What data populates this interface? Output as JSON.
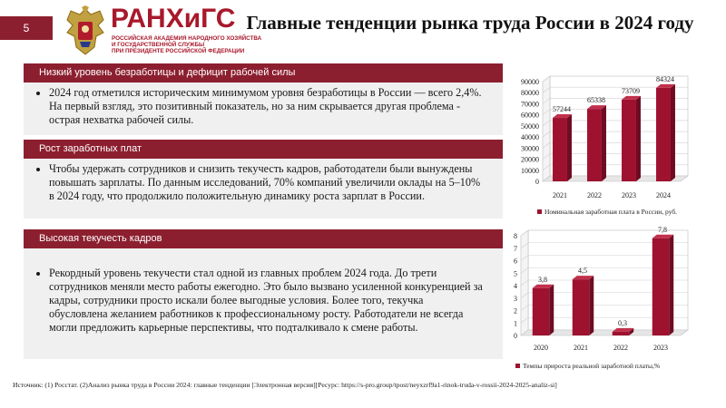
{
  "slide_number": "5",
  "logo": {
    "title": "РАНХиГС",
    "subtitle_lines": [
      "РОССИЙСКАЯ АКАДЕМИЯ НАРОДНОГО ХОЗЯЙСТВА",
      "И ГОСУДАРСТВЕННОЙ СЛУЖБЫ",
      "ПРИ ПРЕЗИДЕНТЕ РОССИЙСКОЙ ФЕДЕРАЦИИ"
    ]
  },
  "title": "Главные тенденции рынка труда России в 2024 году",
  "sections": [
    {
      "header": "Низкий уровень безработицы и дефицит рабочей силы",
      "text": "2024 год отметился историческим минимумом уровня безработицы в России — всего 2,4%. На первый взгляд, это позитивный показатель, но за ним скрывается другая проблема - острая нехватка рабочей силы."
    },
    {
      "header": "Рост заработных плат",
      "text": "Чтобы удержать сотрудников и снизить текучесть кадров, работодатели были вынуждены повышать зарплаты. По данным исследований, 70% компаний увеличили оклады на 5–10% в 2024 году, что продолжило положительную динамику роста зарплат в России."
    },
    {
      "header": "Высокая текучесть кадров",
      "text": "Рекордный уровень текучести стал одной из главных проблем 2024 года. До трети сотрудников меняли место работы ежегодно. Это было вызвано усиленной конкуренцией за кадры, сотрудники просто искали более выгодные условия. Более того, текучка обусловлена желанием работников к профессиональному росту. Работодатели не всегда могли предложить карьерные перспективы, что подталкивало к смене работы."
    }
  ],
  "source": "Источник: (1) Росстат. (2)Анализ рынка труда в России 2024: главные тенденции [Электронная версия][Ресурс: https://s-pro.group/tpost/neyxzrf9a1-rinok-truda-v-rossii-2024-2025-analiz-si]",
  "colors": {
    "accent": "#8c1f2f",
    "bar": "#9e1230",
    "section_bg": "#f0f0f0"
  },
  "chart_data": [
    {
      "type": "bar",
      "categories": [
        "2021",
        "2022",
        "2023",
        "2024"
      ],
      "values": [
        57244,
        65338,
        73709,
        84324
      ],
      "data_labels": [
        "57244",
        "65338",
        "73709",
        "84324"
      ],
      "yticks": [
        "0",
        "10000",
        "20000",
        "30000",
        "40000",
        "50000",
        "60000",
        "70000",
        "80000",
        "90000"
      ],
      "ylim": [
        0,
        90000
      ],
      "legend": "Номинальная заработная плата в России, руб.",
      "legend_position": "bottom",
      "grid": true
    },
    {
      "type": "bar",
      "categories": [
        "2020",
        "2021",
        "2022",
        "2023"
      ],
      "values": [
        3.8,
        4.5,
        0.3,
        7.8
      ],
      "data_labels": [
        "3,8",
        "4,5",
        "0,3",
        "7,8"
      ],
      "yticks": [
        "0",
        "1",
        "2",
        "3",
        "4",
        "5",
        "6",
        "7",
        "8"
      ],
      "ylim": [
        0,
        8
      ],
      "legend": "Темпы прироста реальной заработной платы,%",
      "legend_position": "bottom",
      "grid": true
    }
  ]
}
